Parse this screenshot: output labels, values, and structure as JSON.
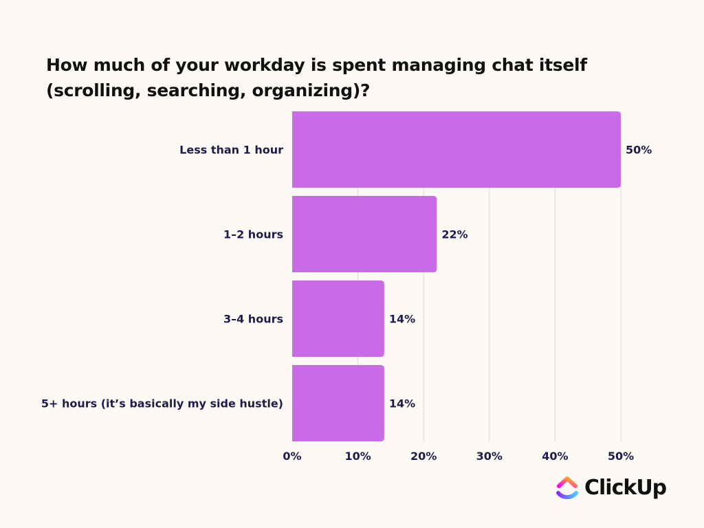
{
  "chart_data": {
    "type": "bar",
    "orientation": "horizontal",
    "title": "How much of your workday is spent managing chat itself (scrolling, searching, organizing)?",
    "categories": [
      "Less than 1 hour",
      "1–2 hours",
      "3–4 hours",
      "5+ hours (it’s basically my side hustle)"
    ],
    "values": [
      50,
      22,
      14,
      14
    ],
    "value_labels": [
      "50%",
      "22%",
      "14%",
      "14%"
    ],
    "xlim": [
      0,
      50
    ],
    "x_ticks": [
      0,
      10,
      20,
      30,
      40,
      50
    ],
    "x_tick_labels": [
      "0%",
      "10%",
      "20%",
      "30%",
      "40%",
      "50%"
    ],
    "grid": "vertical",
    "bar_color": "#c96ae6"
  },
  "brand": {
    "name": "ClickUp",
    "icon": "clickup-logo-icon"
  }
}
